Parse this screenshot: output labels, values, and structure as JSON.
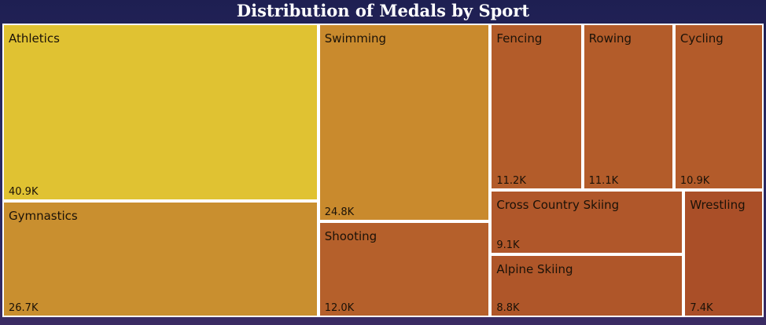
{
  "chart_data": {
    "type": "treemap",
    "title": "Distribution of Medals by Sport",
    "items": [
      {
        "label": "Athletics",
        "value": 40.9,
        "display": "40.9K",
        "color": "#e0c232"
      },
      {
        "label": "Gymnastics",
        "value": 26.7,
        "display": "26.7K",
        "color": "#c98f2f"
      },
      {
        "label": "Swimming",
        "value": 24.8,
        "display": "24.8K",
        "color": "#c98a2d"
      },
      {
        "label": "Shooting",
        "value": 12.0,
        "display": "12.0K",
        "color": "#b5602b"
      },
      {
        "label": "Fencing",
        "value": 11.2,
        "display": "11.2K",
        "color": "#b35c2a"
      },
      {
        "label": "Rowing",
        "value": 11.1,
        "display": "11.1K",
        "color": "#b35c2a"
      },
      {
        "label": "Cycling",
        "value": 10.9,
        "display": "10.9K",
        "color": "#b35b2a"
      },
      {
        "label": "Cross Country Skiing",
        "value": 9.1,
        "display": "9.1K",
        "color": "#b0572a"
      },
      {
        "label": "Alpine Skiing",
        "value": 8.8,
        "display": "8.8K",
        "color": "#af5629"
      },
      {
        "label": "Wrestling",
        "value": 7.4,
        "display": "7.4K",
        "color": "#aa4f28"
      }
    ]
  }
}
